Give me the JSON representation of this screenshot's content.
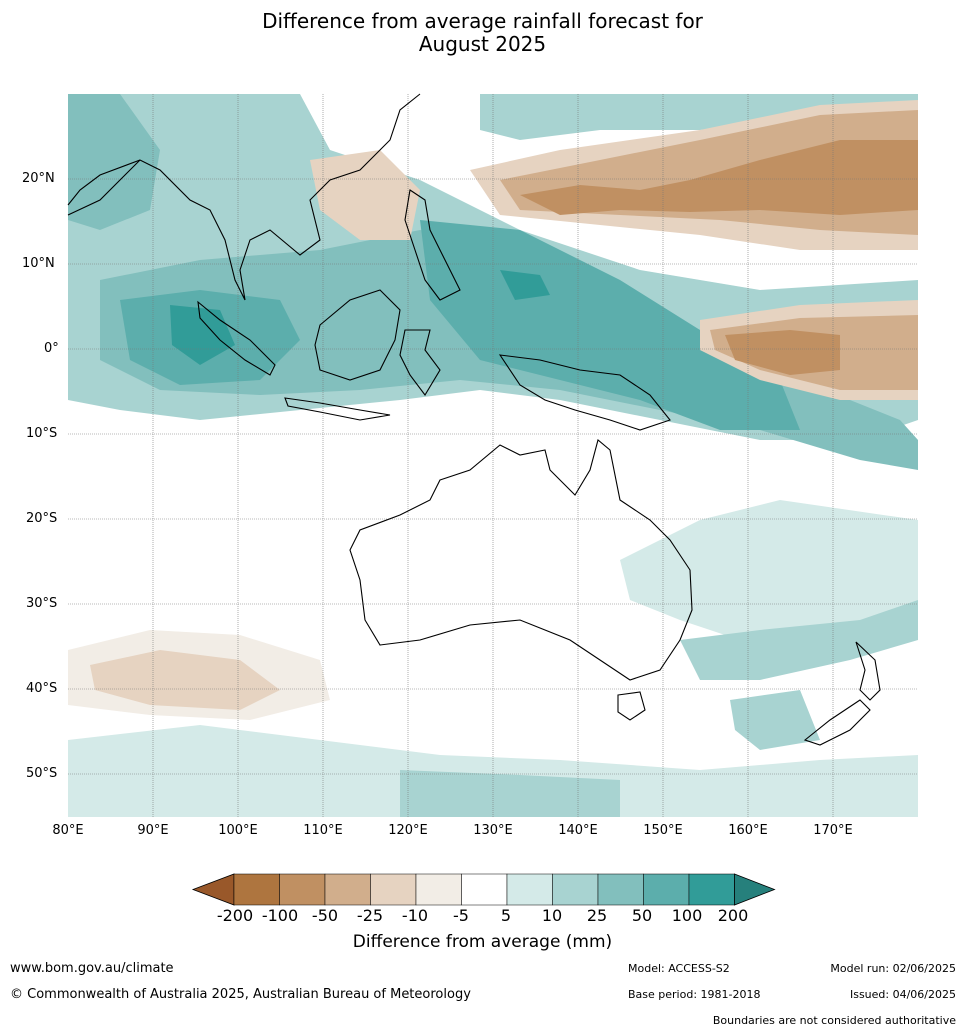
{
  "title_line1": "Difference from average rainfall forecast for",
  "title_line2": "August 2025",
  "map": {
    "lat_labels": [
      "20°N",
      "10°N",
      "0°",
      "10°S",
      "20°S",
      "30°S",
      "40°S",
      "50°S"
    ],
    "lon_labels": [
      "80°E",
      "90°E",
      "100°E",
      "110°E",
      "120°E",
      "130°E",
      "140°E",
      "150°E",
      "160°E",
      "170°E"
    ],
    "lon_range": [
      80,
      180
    ],
    "lat_range": [
      -55,
      30
    ]
  },
  "colorbar": {
    "title": "Difference from average (mm)",
    "ticks": [
      "-200",
      "-100",
      "-50",
      "-25",
      "-10",
      "-5",
      "5",
      "10",
      "25",
      "50",
      "100",
      "200"
    ],
    "colors": {
      "low_extend": "#99582a",
      "c1": "#ae753f",
      "c2": "#c09062",
      "c3": "#d1ae8c",
      "c4": "#e6d3c1",
      "c5": "#f2ede6",
      "c6": "#ffffff",
      "c7": "#d4eae8",
      "c8": "#a8d3d1",
      "c9": "#82bfbd",
      "c10": "#5caeac",
      "c11": "#319c98",
      "high_extend": "#26807c"
    }
  },
  "footer": {
    "url": "www.bom.gov.au/climate",
    "copyright": "© Commonwealth of Australia 2025, Australian Bureau of Meteorology",
    "model": "Model: ACCESS-S2",
    "base_period": "Base period: 1981-2018",
    "model_run": "Model run: 02/06/2025",
    "issued": "Issued: 04/06/2025",
    "disclaimer": "Boundaries are not considered authoritative"
  }
}
